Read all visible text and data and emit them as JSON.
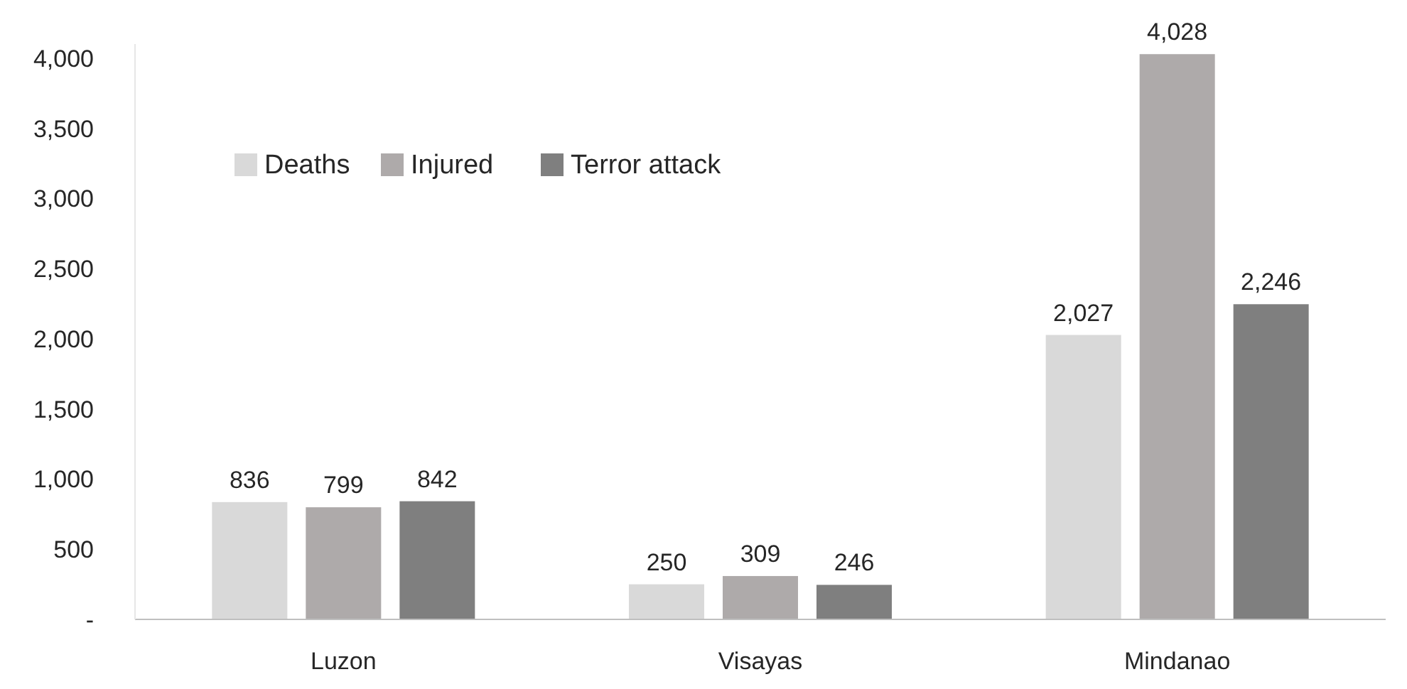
{
  "chart_data": {
    "type": "bar",
    "categories": [
      "Luzon",
      "Visayas",
      "Mindanao"
    ],
    "series": [
      {
        "name": "Deaths",
        "color": "#d9d9d9",
        "values": [
          836,
          250,
          2027
        ],
        "value_labels": [
          "836",
          "250",
          "2,027"
        ]
      },
      {
        "name": "Injured",
        "color": "#aeaaaa",
        "values": [
          799,
          309,
          4028
        ],
        "value_labels": [
          "799",
          "309",
          "4,028"
        ]
      },
      {
        "name": "Terror attack",
        "color": "#7f7f7f",
        "values": [
          842,
          246,
          2246
        ],
        "value_labels": [
          "842",
          "246",
          "2,246"
        ]
      }
    ],
    "ylim": [
      0,
      4100
    ],
    "yticks": [
      {
        "value": 0,
        "label": "-"
      },
      {
        "value": 500,
        "label": "500"
      },
      {
        "value": 1000,
        "label": "1,000"
      },
      {
        "value": 1500,
        "label": "1,500"
      },
      {
        "value": 2000,
        "label": "2,000"
      },
      {
        "value": 2500,
        "label": "2,500"
      },
      {
        "value": 3000,
        "label": "3,000"
      },
      {
        "value": 3500,
        "label": "3,500"
      },
      {
        "value": 4000,
        "label": "4,000"
      }
    ],
    "legend": "top left"
  }
}
